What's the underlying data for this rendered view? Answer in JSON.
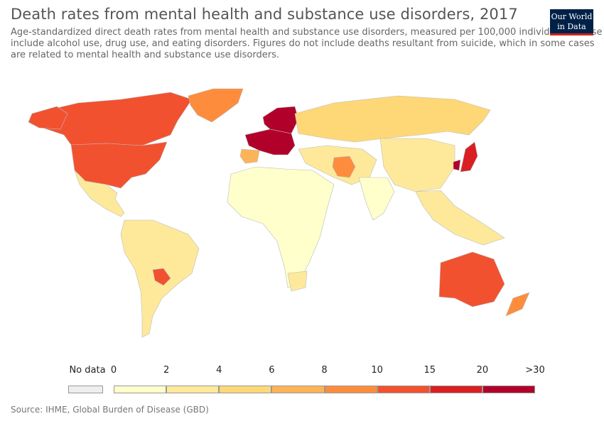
{
  "header": {
    "title": "Death rates from mental health and substance use disorders, 2017",
    "subtitle": "Age-standardized direct death rates from mental health and substance use disorders, measured per 100,000 individuals. These include alcohol use, drug use, and eating disorders. Figures do not include deaths resultant from suicide, which in some cases are related to mental health and substance use disorders."
  },
  "logo": {
    "line1": "Our World",
    "line2": "in Data"
  },
  "legend": {
    "no_data_label": "No data",
    "no_data_color": "#eeeeee",
    "tick_labels": [
      "0",
      "2",
      "4",
      "6",
      "8",
      "10",
      "15",
      "20",
      ">30"
    ],
    "bin_colors": [
      "#ffffcc",
      "#fee99b",
      "#fed877",
      "#fdb357",
      "#fd8d3c",
      "#f25130",
      "#d91f22",
      "#b1002a"
    ]
  },
  "map": {
    "ocean_color": "#ffffff",
    "border_color": "#bbbbbb",
    "regions": [
      {
        "name": "Canada",
        "color": "#f25130"
      },
      {
        "name": "United States",
        "color": "#f25130"
      },
      {
        "name": "Greenland",
        "color": "#fd8d3c"
      },
      {
        "name": "Mexico",
        "color": "#fee99b"
      },
      {
        "name": "South America",
        "color": "#fee99b"
      },
      {
        "name": "Paraguay",
        "color": "#f25130"
      },
      {
        "name": "Western Europe",
        "color": "#b1002a"
      },
      {
        "name": "Russia",
        "color": "#fed877"
      },
      {
        "name": "Africa",
        "color": "#ffffcc"
      },
      {
        "name": "Middle East",
        "color": "#fee99b"
      },
      {
        "name": "Iran",
        "color": "#fd8d3c"
      },
      {
        "name": "India",
        "color": "#ffffcc"
      },
      {
        "name": "China",
        "color": "#fee99b"
      },
      {
        "name": "Japan",
        "color": "#d91f22"
      },
      {
        "name": "Australia",
        "color": "#f25130"
      },
      {
        "name": "New Zealand",
        "color": "#fd8d3c"
      }
    ]
  },
  "source": "Source: IHME, Global Burden of Disease (GBD)"
}
